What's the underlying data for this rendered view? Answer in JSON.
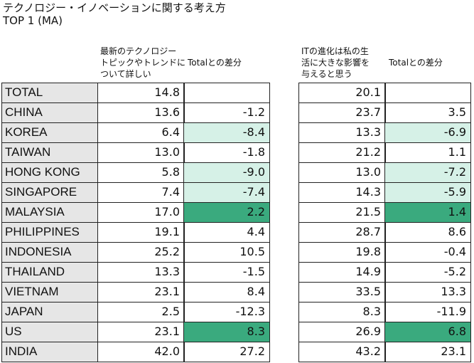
{
  "header": {
    "title": "テクノロジー・イノベーションに関する考え方",
    "subtitle": "TOP 1 (MA)"
  },
  "columns": {
    "left": {
      "lines": [
        "最新のテクノロジー",
        "トピックやトレンドに",
        "ついて詳しい"
      ],
      "diff": "Totalとの差分"
    },
    "right": {
      "lines": [
        "ITの進化は私の生",
        "活に大きな影響を",
        "与えると思う"
      ],
      "diff": "Totalとの差分"
    }
  },
  "highlights": {
    "light": {
      "color": "#d6f1e7",
      "rows": [
        2,
        4,
        5
      ]
    },
    "dark": {
      "color": "#3aaa7e",
      "rows": [
        6,
        12
      ]
    }
  },
  "table": {
    "rows": [
      {
        "label": "TOTAL",
        "left": "14.8",
        "right": "20.1"
      },
      {
        "label": "CHINA",
        "left": "13.6",
        "left_diff": "-1.2",
        "right": "23.7",
        "right_diff": "3.5"
      },
      {
        "label": "KOREA",
        "left": "6.4",
        "left_diff": "-8.4",
        "right": "13.3",
        "right_diff": "-6.9"
      },
      {
        "label": "TAIWAN",
        "left": "13.0",
        "left_diff": "-1.8",
        "right": "21.2",
        "right_diff": "1.1"
      },
      {
        "label": "HONG KONG",
        "left": "5.8",
        "left_diff": "-9.0",
        "right": "13.0",
        "right_diff": "-7.2"
      },
      {
        "label": "SINGAPORE",
        "left": "7.4",
        "left_diff": "-7.4",
        "right": "14.3",
        "right_diff": "-5.9"
      },
      {
        "label": "MALAYSIA",
        "left": "17.0",
        "left_diff": "2.2",
        "right": "21.5",
        "right_diff": "1.4"
      },
      {
        "label": "PHILIPPINES",
        "left": "19.1",
        "left_diff": "4.4",
        "right": "28.7",
        "right_diff": "8.6"
      },
      {
        "label": "INDONESIA",
        "left": "25.2",
        "left_diff": "10.5",
        "right": "19.8",
        "right_diff": "-0.4"
      },
      {
        "label": "THAILAND",
        "left": "13.3",
        "left_diff": "-1.5",
        "right": "14.9",
        "right_diff": "-5.2"
      },
      {
        "label": "VIETNAM",
        "left": "23.1",
        "left_diff": "8.4",
        "right": "33.5",
        "right_diff": "13.3"
      },
      {
        "label": "JAPAN",
        "left": "2.5",
        "left_diff": "-12.3",
        "right": "8.3",
        "right_diff": "-11.9"
      },
      {
        "label": "US",
        "left": "23.1",
        "left_diff": "8.3",
        "right": "26.9",
        "right_diff": "6.8"
      },
      {
        "label": "INDIA",
        "left": "42.0",
        "left_diff": "27.2",
        "right": "43.2",
        "right_diff": "23.1"
      }
    ]
  }
}
